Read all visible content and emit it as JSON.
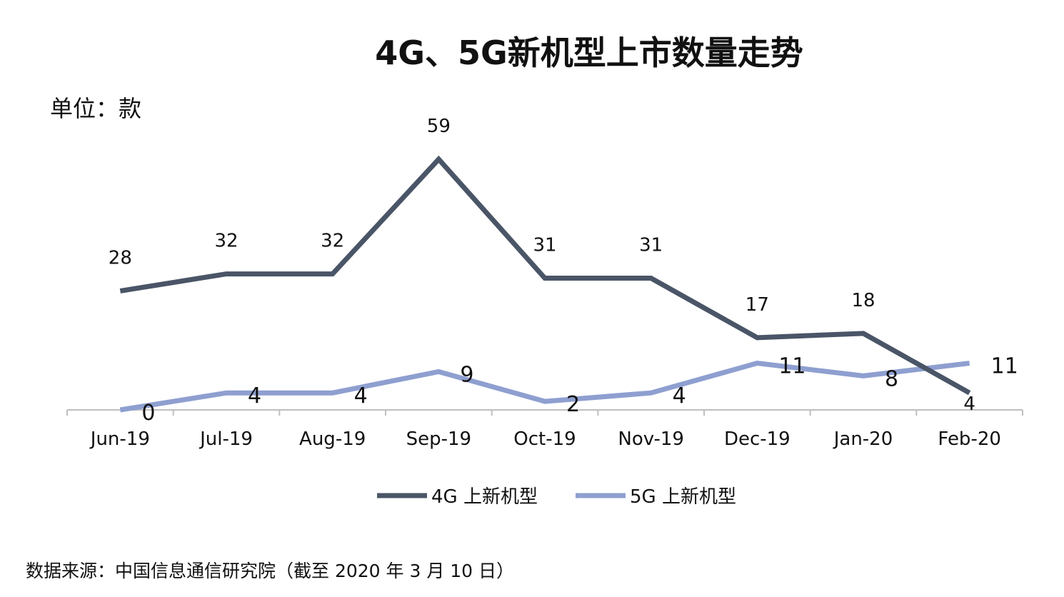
{
  "chart_data": {
    "type": "line",
    "title": "4G、5G新机型上市数量走势",
    "unit_label": "单位：款",
    "categories": [
      "Jun-19",
      "Jul-19",
      "Aug-19",
      "Sep-19",
      "Oct-19",
      "Nov-19",
      "Dec-19",
      "Jan-20",
      "Feb-20"
    ],
    "series": [
      {
        "name": "4G 上新机型",
        "color": "#4a5567",
        "values": [
          28,
          32,
          32,
          59,
          31,
          31,
          17,
          18,
          4
        ]
      },
      {
        "name": "5G 上新机型",
        "color": "#8e9fd0",
        "values": [
          0,
          4,
          4,
          9,
          2,
          4,
          11,
          8,
          11
        ]
      }
    ],
    "ylim": [
      0,
      65
    ],
    "grid": false,
    "legend_position": "bottom",
    "data_labels": true,
    "axis_color": "#bfbfbf"
  },
  "source_note": "数据来源：中国信息通信研究院（截至 2020 年 3 月 10 日）"
}
